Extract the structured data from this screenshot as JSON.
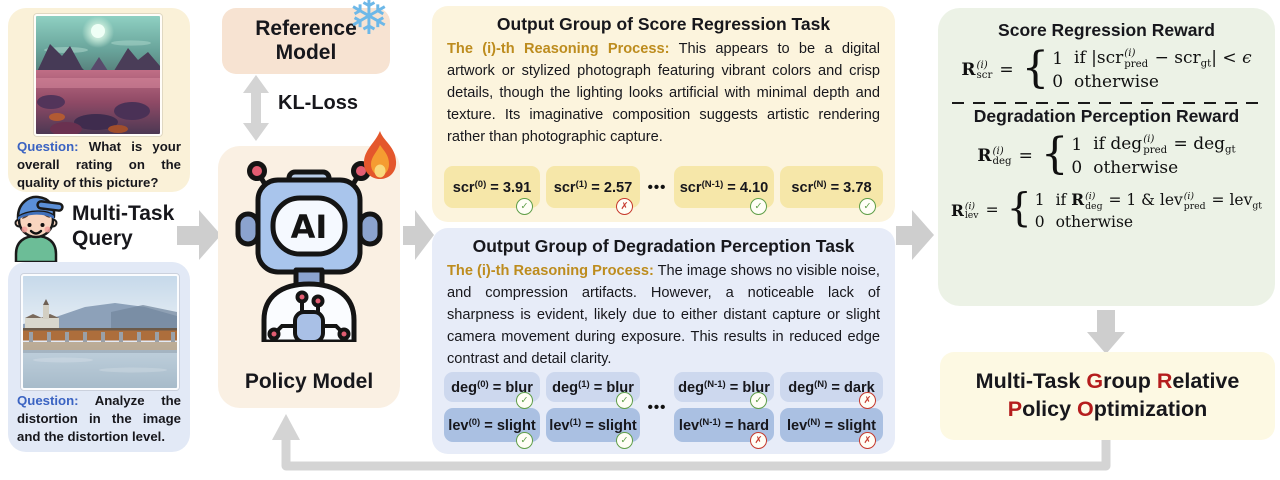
{
  "colors": {
    "accent_red": "#b51d1d",
    "status_green": "#5f9e48",
    "status_red": "#c6392c",
    "question_blue": "#3a63c2",
    "reasoning_gold": "#bd8c1e"
  },
  "icons": {
    "snowflake": "❄",
    "check": "✓",
    "cross": "✗"
  },
  "queries": {
    "score": {
      "label": "Question:",
      "text": "What is your overall rating on the quality of this picture?"
    },
    "degradation": {
      "label": "Question:",
      "text": "Analyze the distortion in the image and the distortion level."
    }
  },
  "user": {
    "label": "Multi-Task Query"
  },
  "models": {
    "reference": {
      "label": "Reference Model"
    },
    "policy": {
      "label": "Policy Model"
    },
    "kl": {
      "label": "KL-Loss"
    },
    "ai_badge": "AI"
  },
  "score_group": {
    "title": "Output Group of Score Regression Task",
    "reasoning_label": "The (i)-th Reasoning Process:",
    "reasoning_text": "This appears to be a digital artwork or stylized photograph featuring vibrant colors and crisp details, though the lighting looks artificial with minimal depth and texture. Its imaginative composition suggests artistic rendering rather than photographic capture.",
    "dots": "•••",
    "chips": [
      {
        "base": "scr",
        "sup": "(0)",
        "value": "3.91",
        "correct": true
      },
      {
        "base": "scr",
        "sup": "(1)",
        "value": "2.57",
        "correct": false
      },
      {
        "base": "scr",
        "sup": "(N-1)",
        "value": "4.10",
        "correct": true
      },
      {
        "base": "scr",
        "sup": "(N)",
        "value": "3.78",
        "correct": true
      }
    ]
  },
  "deg_group": {
    "title": "Output Group of Degradation Perception Task",
    "reasoning_label": "The (i)-th Reasoning Process:",
    "reasoning_text": "The image shows no visible noise, and compression artifacts. However, a noticeable lack of sharpness is evident, likely due to either distant capture or slight camera movement during exposure. This results in reduced edge contrast and detail clarity.",
    "dots": "•••",
    "deg_chips": [
      {
        "base": "deg",
        "sup": "(0)",
        "value": "blur",
        "correct": true
      },
      {
        "base": "deg",
        "sup": "(1)",
        "value": "blur",
        "correct": true
      },
      {
        "base": "deg",
        "sup": "(N-1)",
        "value": "blur",
        "correct": true
      },
      {
        "base": "deg",
        "sup": "(N)",
        "value": "dark",
        "correct": false
      }
    ],
    "lev_chips": [
      {
        "base": "lev",
        "sup": "(0)",
        "value": "slight",
        "correct": true
      },
      {
        "base": "lev",
        "sup": "(1)",
        "value": "slight",
        "correct": true
      },
      {
        "base": "lev",
        "sup": "(N-1)",
        "value": "hard",
        "correct": false
      },
      {
        "base": "lev",
        "sup": "(N)",
        "value": "slight",
        "correct": false
      }
    ]
  },
  "rewards": {
    "score_title": "Score Regression Reward",
    "deg_title": "Degradation Perception Reward",
    "formulas": [
      {
        "small": false,
        "lhs": [
          {
            "base": "R",
            "b": true,
            "sup": "(i)",
            "sub": "scr"
          }
        ],
        "cases": [
          {
            "value": "1",
            "cond": [
              {
                "t": "if |"
              },
              {
                "base": "scr",
                "sup": "(i)",
                "sub": "pred"
              },
              {
                "t": " − "
              },
              {
                "base": "scr",
                "sub": "gt"
              },
              {
                "t": "| < "
              },
              {
                "t": "ϵ",
                "i": true
              }
            ]
          },
          {
            "value": "0",
            "cond": [
              {
                "t": "otherwise"
              }
            ]
          }
        ]
      },
      {
        "small": false,
        "lhs": [
          {
            "base": "R",
            "b": true,
            "sup": "(i)",
            "sub": "deg"
          }
        ],
        "cases": [
          {
            "value": "1",
            "cond": [
              {
                "t": "if "
              },
              {
                "base": "deg",
                "sup": "(i)",
                "sub": "pred"
              },
              {
                "t": " = "
              },
              {
                "base": "deg",
                "sub": "gt"
              }
            ]
          },
          {
            "value": "0",
            "cond": [
              {
                "t": "otherwise"
              }
            ]
          }
        ]
      },
      {
        "small": true,
        "lhs": [
          {
            "base": "R",
            "b": true,
            "sup": "(i)",
            "sub": "lev"
          }
        ],
        "cases": [
          {
            "value": "1",
            "cond": [
              {
                "t": "if "
              },
              {
                "base": "R",
                "b": true,
                "sup": "(i)",
                "sub": "deg"
              },
              {
                "t": " = 1 & "
              },
              {
                "base": "lev",
                "sup": "(i)",
                "sub": "pred"
              },
              {
                "t": " = "
              },
              {
                "base": "lev",
                "sub": "gt"
              }
            ]
          },
          {
            "value": "0",
            "cond": [
              {
                "t": "otherwise"
              }
            ]
          }
        ]
      }
    ]
  },
  "grpo": {
    "segments": [
      {
        "t": "Multi-Task "
      },
      {
        "t": "G",
        "red": true
      },
      {
        "t": "roup "
      },
      {
        "t": "R",
        "red": true
      },
      {
        "t": "elative"
      },
      {
        "br": true
      },
      {
        "t": "P",
        "red": true
      },
      {
        "t": "olicy "
      },
      {
        "t": "O",
        "red": true
      },
      {
        "t": "ptimization"
      }
    ]
  }
}
